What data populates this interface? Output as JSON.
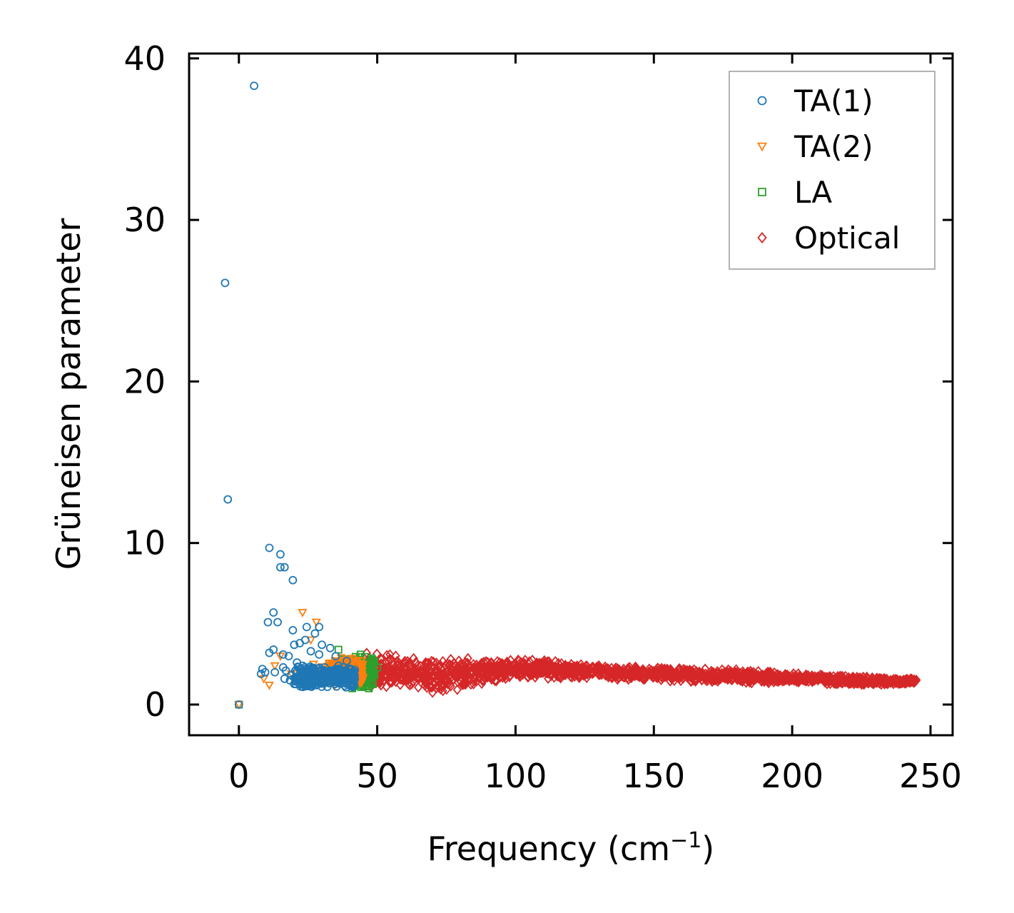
{
  "chart_data": {
    "type": "scatter",
    "title": "",
    "xlabel": "Frequency (cm",
    "xlabel_sup": "−1",
    "xlabel_close": ")",
    "ylabel": "Grüneisen parameter",
    "xlim": [
      -18,
      258
    ],
    "ylim": [
      -1.9,
      40.3
    ],
    "xticks": [
      0,
      50,
      100,
      150,
      200,
      250
    ],
    "yticks": [
      0,
      10,
      20,
      30,
      40
    ],
    "xtick_labels": [
      "0",
      "50",
      "100",
      "150",
      "200",
      "250"
    ],
    "ytick_labels": [
      "0",
      "10",
      "20",
      "30",
      "40"
    ],
    "grid": false,
    "legend_position": "top-right",
    "series": [
      {
        "name": "TA(1)",
        "marker": "circle",
        "color": "#1f77b4",
        "points": [
          [
            5.5,
            38.3
          ],
          [
            -5,
            26.1
          ],
          [
            -4,
            12.7
          ],
          [
            11,
            9.7
          ],
          [
            15,
            9.3
          ],
          [
            15,
            8.5
          ],
          [
            16.5,
            8.5
          ],
          [
            19.5,
            7.7
          ],
          [
            12.5,
            5.7
          ],
          [
            10.5,
            5.1
          ],
          [
            14,
            5.1
          ],
          [
            19.5,
            4.6
          ],
          [
            24.5,
            4.8
          ],
          [
            29,
            4.8
          ],
          [
            24,
            4.0
          ],
          [
            27.5,
            4.4
          ],
          [
            30,
            3.7
          ],
          [
            20,
            3.7
          ],
          [
            22,
            3.8
          ],
          [
            11,
            3.2
          ],
          [
            12.5,
            3.4
          ],
          [
            16,
            3.1
          ],
          [
            18,
            3.0
          ],
          [
            26,
            3.3
          ],
          [
            29,
            3.1
          ],
          [
            33,
            3.5
          ],
          [
            35,
            3.0
          ],
          [
            8.5,
            2.2
          ],
          [
            9.5,
            2.0
          ],
          [
            8,
            1.9
          ],
          [
            13,
            2.0
          ],
          [
            16,
            2.3
          ],
          [
            17,
            2.1
          ],
          [
            19,
            1.8
          ],
          [
            16.5,
            1.6
          ],
          [
            18.5,
            1.5
          ],
          [
            21,
            2.6
          ],
          [
            23,
            2.4
          ],
          [
            25,
            2.2
          ],
          [
            27,
            1.9
          ],
          [
            31,
            2.3
          ],
          [
            33,
            2.1
          ],
          [
            36,
            2.4
          ],
          [
            38,
            1.9
          ],
          [
            40,
            2.2
          ],
          [
            39,
            2.7
          ],
          [
            0,
            0
          ]
        ]
      },
      {
        "name": "TA(2)",
        "marker": "triangle-down",
        "color": "#ff7f0e",
        "points": [
          [
            23,
            5.7
          ],
          [
            28,
            5.1
          ],
          [
            26,
            4.0
          ],
          [
            15,
            3.0
          ],
          [
            13,
            2.4
          ],
          [
            11,
            1.2
          ],
          [
            9,
            1.6
          ],
          [
            19,
            1.9
          ],
          [
            24,
            1.5
          ],
          [
            27,
            2.5
          ],
          [
            30,
            1.3
          ],
          [
            33,
            2.2
          ],
          [
            35,
            1.4
          ],
          [
            37,
            2.9
          ],
          [
            39,
            1.8
          ],
          [
            40,
            2.6
          ],
          [
            41,
            1.3
          ],
          [
            42,
            2.2
          ],
          [
            43,
            1.6
          ],
          [
            44,
            2.4
          ],
          [
            0,
            0
          ]
        ]
      },
      {
        "name": "LA",
        "marker": "square",
        "color": "#2ca02c",
        "points": [
          [
            36,
            3.4
          ],
          [
            38,
            2.8
          ],
          [
            40,
            1.9
          ],
          [
            41,
            1.0
          ],
          [
            42,
            2.5
          ],
          [
            43,
            1.2
          ],
          [
            44,
            3.1
          ],
          [
            45,
            1.5
          ],
          [
            46,
            2.2
          ],
          [
            47,
            1.0
          ],
          [
            48,
            2.7
          ],
          [
            49,
            1.8
          ],
          [
            50,
            2.3
          ],
          [
            0,
            0
          ]
        ]
      },
      {
        "name": "Optical",
        "marker": "diamond",
        "color": "#d62728",
        "band": [
          [
            46,
            0.9,
            3.3
          ],
          [
            50,
            1.0,
            3.4
          ],
          [
            60,
            1.0,
            3.1
          ],
          [
            70,
            0.7,
            3.0
          ],
          [
            73,
            0.6,
            2.9
          ],
          [
            80,
            0.9,
            3.0
          ],
          [
            90,
            1.3,
            2.9
          ],
          [
            100,
            1.5,
            2.9
          ],
          [
            110,
            1.6,
            2.8
          ],
          [
            120,
            1.6,
            2.6
          ],
          [
            140,
            1.5,
            2.4
          ],
          [
            160,
            1.4,
            2.3
          ],
          [
            180,
            1.3,
            2.2
          ],
          [
            200,
            1.3,
            2.0
          ],
          [
            220,
            1.2,
            1.8
          ],
          [
            235,
            1.2,
            1.7
          ],
          [
            245,
            1.3,
            1.6
          ]
        ]
      }
    ]
  }
}
